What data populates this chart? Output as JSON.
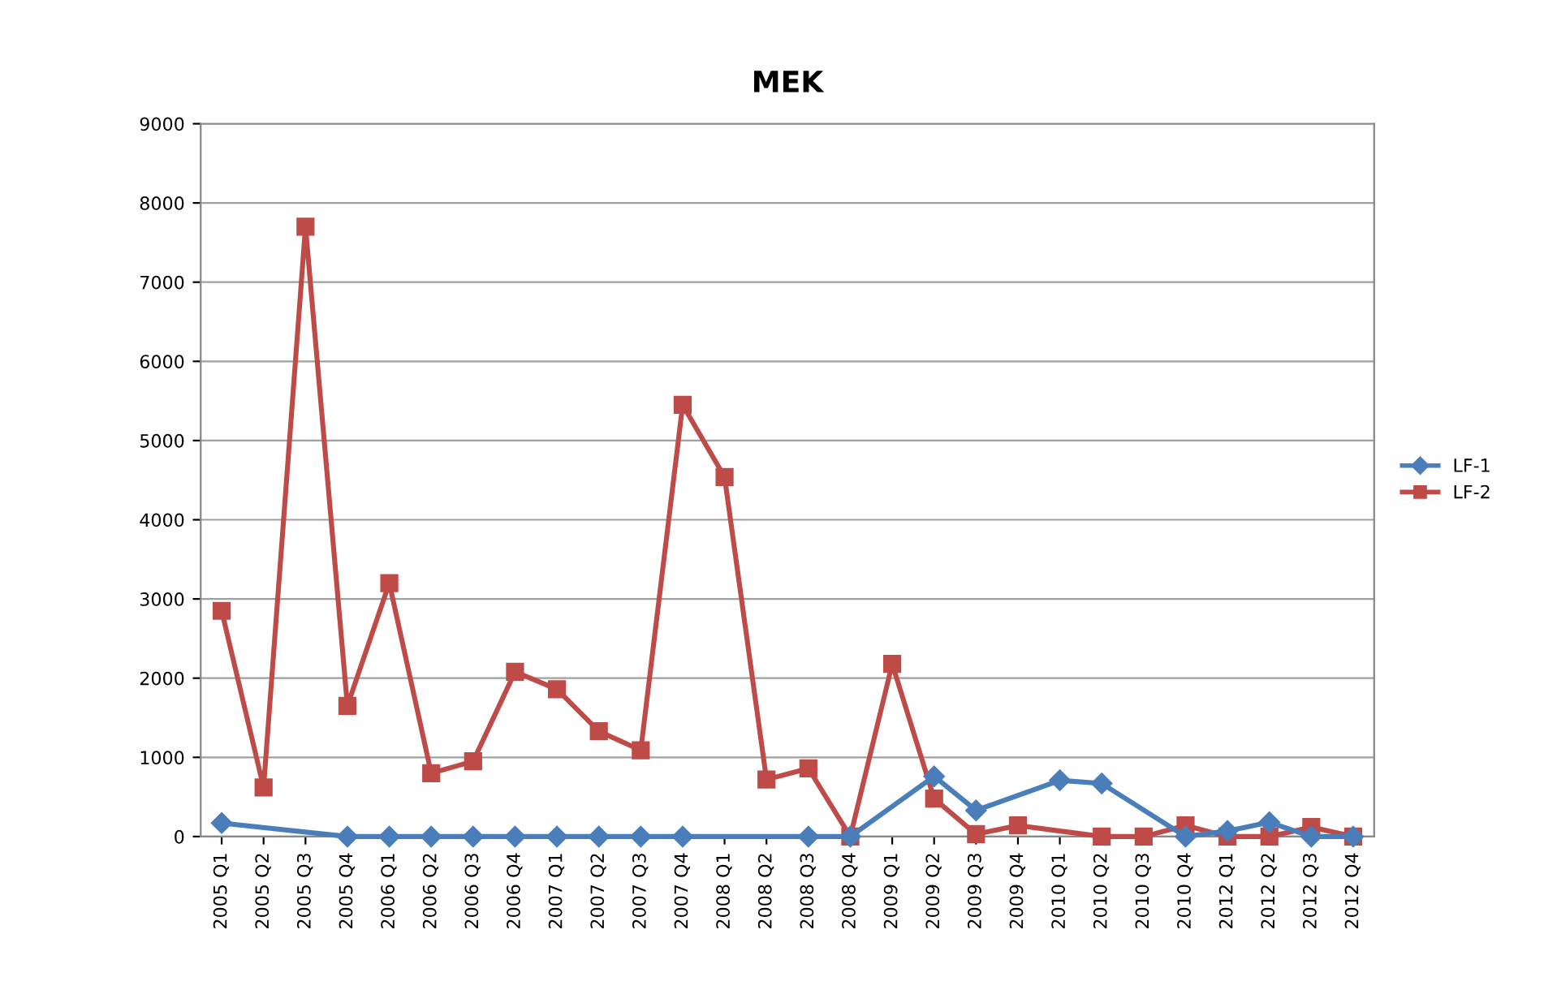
{
  "chart_data": {
    "type": "line",
    "title": "MEK",
    "categories": [
      "2005 Q1",
      "2005 Q2",
      "2005 Q3",
      "2005 Q4",
      "2006 Q1",
      "2006 Q2",
      "2006 Q3",
      "2006 Q4",
      "2007 Q1",
      "2007 Q2",
      "2007 Q3",
      "2007 Q4",
      "2008 Q1",
      "2008 Q2",
      "2008 Q3",
      "2008 Q4",
      "2009 Q1",
      "2009 Q2",
      "2009 Q3",
      "2009 Q4",
      "2010 Q1",
      "2010 Q2",
      "2010 Q3",
      "2010 Q4",
      "2012 Q1",
      "2012 Q2",
      "2012 Q3",
      "2012 Q4"
    ],
    "series": [
      {
        "name": "LF-1",
        "color": "#4a7ebb",
        "marker": "diamond",
        "values": [
          170,
          null,
          null,
          0,
          0,
          0,
          0,
          0,
          0,
          0,
          0,
          0,
          null,
          null,
          0,
          0,
          null,
          760,
          330,
          null,
          710,
          670,
          null,
          0,
          70,
          180,
          0,
          0
        ]
      },
      {
        "name": "LF-2",
        "color": "#be4b48",
        "marker": "square",
        "values": [
          2850,
          620,
          7700,
          1650,
          3200,
          800,
          950,
          2080,
          1860,
          1330,
          1090,
          5450,
          4540,
          720,
          860,
          0,
          2180,
          480,
          30,
          140,
          null,
          0,
          0,
          140,
          0,
          0,
          120,
          0
        ]
      }
    ],
    "ylim": [
      0,
      9000
    ],
    "yticks": [
      0,
      1000,
      2000,
      3000,
      4000,
      5000,
      6000,
      7000,
      8000,
      9000
    ],
    "grid": "y",
    "legend": "right",
    "line_style": "solid"
  }
}
